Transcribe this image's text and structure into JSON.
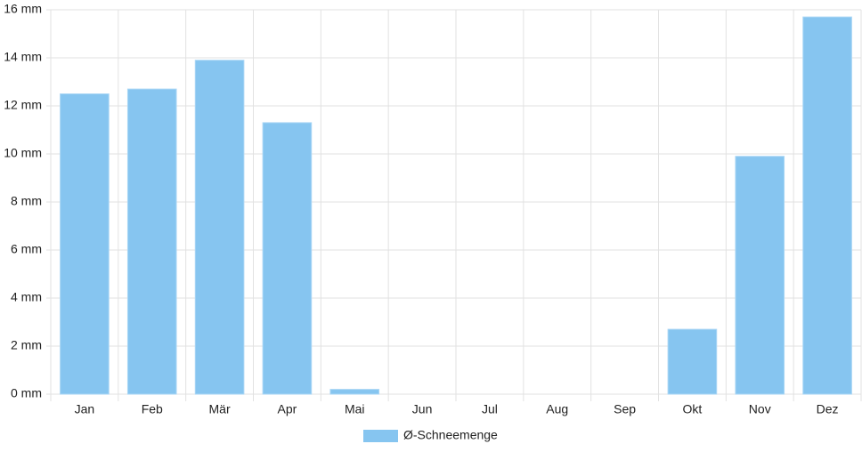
{
  "chart_data": {
    "type": "bar",
    "categories": [
      "Jan",
      "Feb",
      "Mär",
      "Apr",
      "Mai",
      "Jun",
      "Jul",
      "Aug",
      "Sep",
      "Okt",
      "Nov",
      "Dez"
    ],
    "series": [
      {
        "name": "Ø-Schneemenge",
        "color": "#86c5f0",
        "values": [
          12.5,
          12.7,
          13.9,
          11.3,
          0.2,
          0,
          0,
          0,
          0,
          2.7,
          9.9,
          15.7
        ]
      }
    ],
    "ylim": [
      0,
      16
    ],
    "yticks": [
      {
        "value": 0,
        "label": "0 mm"
      },
      {
        "value": 2,
        "label": "2 mm"
      },
      {
        "value": 4,
        "label": "4 mm"
      },
      {
        "value": 6,
        "label": "6 mm"
      },
      {
        "value": 8,
        "label": "8 mm"
      },
      {
        "value": 10,
        "label": "10 mm"
      },
      {
        "value": 12,
        "label": "12 mm"
      },
      {
        "value": 14,
        "label": "14 mm"
      },
      {
        "value": 16,
        "label": "16 mm"
      }
    ],
    "grid": true,
    "legend": "bottom"
  }
}
